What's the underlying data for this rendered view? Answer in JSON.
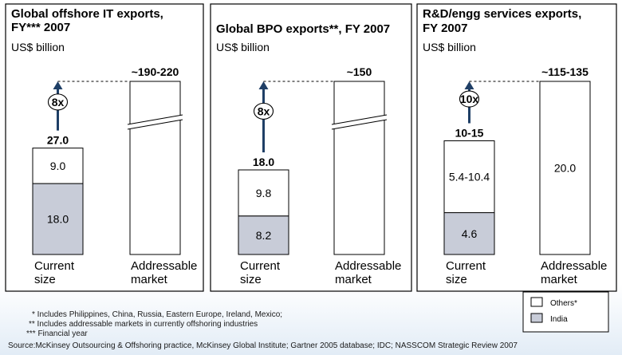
{
  "colors": {
    "india": "#c8ccd8",
    "others": "#ffffff",
    "arrow": "#1f3f66",
    "panel_border": "#000000"
  },
  "chart_data": [
    {
      "type": "bar",
      "title": "Global offshore IT exports, FY*** 2007",
      "unit": "US$ billion",
      "categories": [
        "Current size",
        "Addressable market"
      ],
      "series": [
        {
          "name": "India",
          "values": [
            18.0,
            null
          ],
          "labels": [
            "18.0",
            ""
          ]
        },
        {
          "name": "Others*",
          "values": [
            9.0,
            null
          ],
          "labels": [
            "9.0",
            ""
          ]
        }
      ],
      "totals": [
        "27.0",
        "~190-220"
      ],
      "multiplier": "8x",
      "axis_break": true
    },
    {
      "type": "bar",
      "title": "Global BPO exports**, FY 2007",
      "unit": "US$ billion",
      "categories": [
        "Current size",
        "Addressable market"
      ],
      "series": [
        {
          "name": "India",
          "values": [
            8.2,
            null
          ],
          "labels": [
            "8.2",
            ""
          ]
        },
        {
          "name": "Others*",
          "values": [
            9.8,
            null
          ],
          "labels": [
            "9.8",
            ""
          ]
        }
      ],
      "totals": [
        "18.0",
        "~150"
      ],
      "multiplier": "8x",
      "axis_break": true
    },
    {
      "type": "bar",
      "title": "R&D/engg services exports, FY 2007",
      "unit": "US$ billion",
      "categories": [
        "Current size",
        "Addressable market"
      ],
      "series": [
        {
          "name": "India",
          "values": [
            4.6,
            null
          ],
          "labels": [
            "4.6",
            ""
          ]
        },
        {
          "name": "Others*",
          "values": [
            7.9,
            20.0
          ],
          "labels": [
            "5.4-10.4",
            "20.0"
          ]
        }
      ],
      "totals": [
        "10-15",
        "~115-135"
      ],
      "multiplier": "10x",
      "axis_break": false
    }
  ],
  "legend": {
    "others": "Others*",
    "india": "India"
  },
  "footnotes": [
    "*   Includes Philippines, China, Russia, Eastern Europe, Ireland, Mexico;",
    "**   Includes addressable markets in currently offshoring industries",
    "***  Financial year"
  ],
  "source": "Source:McKinsey Outsourcing & Offshoring practice, McKinsey Global Institute; Gartner 2005 database; IDC;  NASSCOM Strategic Review 2007"
}
